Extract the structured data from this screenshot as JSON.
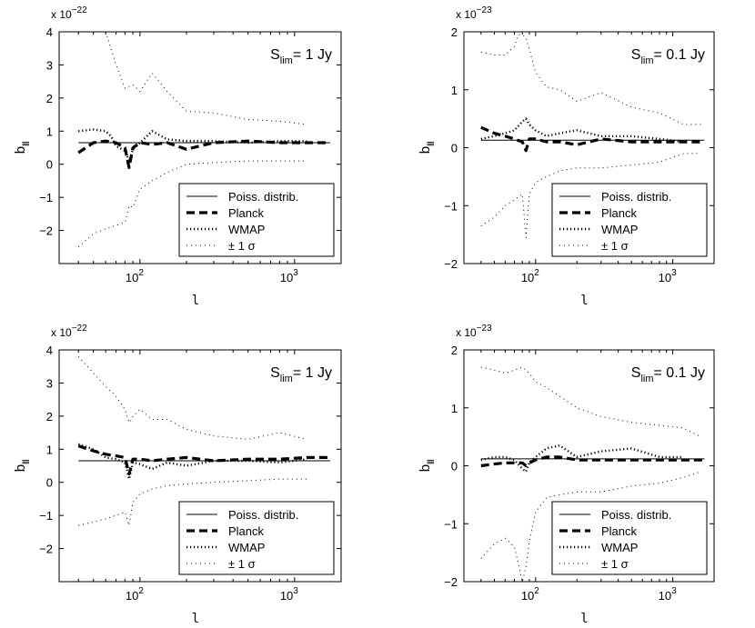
{
  "chart_data": [
    {
      "type": "line",
      "panel": "top-left",
      "annotation": {
        "prefix": "S",
        "sub": "lim",
        "rest": "= 1 Jy"
      },
      "multiplier": {
        "prefix": "x 10",
        "exp": "−22"
      },
      "xlabel": "l",
      "ylabel": {
        "main": "b",
        "sub": "lll"
      },
      "xscale": "log",
      "xlim": [
        30,
        2000
      ],
      "ylim": [
        -3,
        4
      ],
      "yticks": [
        -2,
        -1,
        0,
        1,
        2,
        3,
        4
      ],
      "xticks": [
        {
          "base": "10",
          "exp": "2",
          "value": 100
        },
        {
          "base": "10",
          "exp": "3",
          "value": 1000
        }
      ],
      "legend": {
        "position": "bottom-right",
        "entries": [
          "Poiss. distrib.",
          "Planck",
          "WMAP",
          "± 1 σ"
        ]
      },
      "series": [
        {
          "name": "Poiss. distrib.",
          "style": "solid",
          "x": [
            40,
            1700
          ],
          "y": [
            0.65,
            0.65
          ]
        },
        {
          "name": "Planck",
          "style": "dashed",
          "x": [
            40,
            50,
            60,
            70,
            80,
            85,
            90,
            100,
            120,
            150,
            200,
            300,
            500,
            800,
            1200,
            1700
          ],
          "y": [
            0.35,
            0.65,
            0.7,
            0.65,
            0.5,
            -0.1,
            0.5,
            0.65,
            0.6,
            0.65,
            0.45,
            0.65,
            0.7,
            0.65,
            0.65,
            0.65
          ]
        },
        {
          "name": "WMAP",
          "style": "dotted",
          "x": [
            40,
            50,
            60,
            65,
            70,
            80,
            85,
            90,
            100,
            120,
            150,
            200,
            300,
            500,
            800,
            1200
          ],
          "y": [
            1.0,
            1.05,
            1.0,
            0.85,
            0.55,
            0.4,
            0.1,
            0.45,
            0.65,
            1.0,
            0.75,
            0.7,
            0.7,
            0.65,
            0.7,
            0.7
          ]
        },
        {
          "name": "± 1 σ",
          "style": "sparse-dot",
          "x": [
            60,
            70,
            80,
            90,
            100,
            120,
            150,
            200,
            300,
            500,
            800,
            1200
          ],
          "y": [
            4.0,
            3.0,
            2.3,
            2.4,
            2.2,
            2.75,
            2.2,
            1.6,
            1.55,
            1.35,
            1.3,
            1.2
          ]
        },
        {
          "name": "± 1 σ",
          "style": "sparse-dot",
          "x": [
            40,
            50,
            60,
            70,
            80,
            85,
            90,
            100,
            120,
            150,
            200,
            300,
            500,
            800,
            1200
          ],
          "y": [
            -2.5,
            -2.1,
            -1.95,
            -1.85,
            -1.75,
            -1.25,
            -1.3,
            -0.75,
            -0.5,
            -0.25,
            0.0,
            0.05,
            0.1,
            0.1,
            0.1
          ]
        }
      ]
    },
    {
      "type": "line",
      "panel": "top-right",
      "annotation": {
        "prefix": "S",
        "sub": "lim",
        "rest": "= 0.1 Jy"
      },
      "multiplier": {
        "prefix": "x 10",
        "exp": "−23"
      },
      "xlabel": "l",
      "ylabel": {
        "main": "b",
        "sub": "lll"
      },
      "xscale": "log",
      "xlim": [
        30,
        2000
      ],
      "ylim": [
        -2,
        2
      ],
      "yticks": [
        -2,
        -1,
        0,
        1,
        2
      ],
      "xticks": [
        {
          "base": "10",
          "exp": "2",
          "value": 100
        },
        {
          "base": "10",
          "exp": "3",
          "value": 1000
        }
      ],
      "legend": {
        "position": "bottom-right",
        "entries": [
          "Poiss. distrib.",
          "Planck",
          "WMAP",
          "± 1 σ"
        ]
      },
      "series": [
        {
          "name": "Poiss. distrib.",
          "style": "solid",
          "x": [
            40,
            1700
          ],
          "y": [
            0.13,
            0.13
          ]
        },
        {
          "name": "Planck",
          "style": "dashed",
          "x": [
            40,
            50,
            60,
            70,
            80,
            85,
            90,
            100,
            120,
            150,
            200,
            300,
            500,
            800,
            1200,
            1700
          ],
          "y": [
            0.35,
            0.25,
            0.2,
            0.15,
            0.1,
            -0.05,
            0.15,
            0.15,
            0.1,
            0.1,
            0.05,
            0.15,
            0.1,
            0.1,
            0.1,
            0.1
          ]
        },
        {
          "name": "WMAP",
          "style": "dotted",
          "x": [
            40,
            50,
            60,
            70,
            80,
            85,
            90,
            100,
            120,
            150,
            200,
            300,
            500,
            800,
            1200
          ],
          "y": [
            0.15,
            0.2,
            0.25,
            0.3,
            0.45,
            0.5,
            0.4,
            0.3,
            0.2,
            0.25,
            0.3,
            0.2,
            0.2,
            0.15,
            0.1
          ]
        },
        {
          "name": "± 1 σ",
          "style": "sparse-dot",
          "x": [
            40,
            50,
            60,
            70,
            75,
            80,
            85,
            90,
            100,
            120,
            150,
            200,
            300,
            500,
            800,
            1200,
            1600
          ],
          "y": [
            1.65,
            1.6,
            1.6,
            1.75,
            1.95,
            1.95,
            1.9,
            1.7,
            1.3,
            1.05,
            1.0,
            0.8,
            0.95,
            0.7,
            0.6,
            0.4,
            0.4
          ]
        },
        {
          "name": "± 1 σ",
          "style": "sparse-dot",
          "x": [
            40,
            50,
            60,
            70,
            80,
            85,
            90,
            100,
            120,
            150,
            200,
            300,
            500,
            800,
            1200,
            1600
          ],
          "y": [
            -1.35,
            -1.2,
            -1.0,
            -0.9,
            -0.8,
            -1.55,
            -0.8,
            -0.6,
            -0.5,
            -0.4,
            -0.35,
            -0.35,
            -0.3,
            -0.25,
            -0.1,
            -0.1
          ]
        }
      ]
    },
    {
      "type": "line",
      "panel": "bottom-left",
      "annotation": {
        "prefix": "S",
        "sub": "lim",
        "rest": "= 1 Jy"
      },
      "multiplier": {
        "prefix": "x 10",
        "exp": "−22"
      },
      "xlabel": "l",
      "ylabel": {
        "main": "b",
        "sub": "lll"
      },
      "xscale": "log",
      "xlim": [
        30,
        2000
      ],
      "ylim": [
        -3,
        4
      ],
      "yticks": [
        -2,
        -1,
        0,
        1,
        2,
        3,
        4
      ],
      "xticks": [
        {
          "base": "10",
          "exp": "2",
          "value": 100
        },
        {
          "base": "10",
          "exp": "3",
          "value": 1000
        }
      ],
      "legend": {
        "position": "bottom-right",
        "entries": [
          "Poiss. distrib.",
          "Planck",
          "WMAP",
          "± 1 σ"
        ]
      },
      "series": [
        {
          "name": "Poiss. distrib.",
          "style": "solid",
          "x": [
            40,
            1700
          ],
          "y": [
            0.65,
            0.65
          ]
        },
        {
          "name": "Planck",
          "style": "dashed",
          "x": [
            40,
            50,
            60,
            70,
            80,
            85,
            90,
            100,
            120,
            150,
            200,
            300,
            500,
            800,
            1200,
            1700
          ],
          "y": [
            1.1,
            0.95,
            0.85,
            0.8,
            0.75,
            0.25,
            0.7,
            0.7,
            0.65,
            0.7,
            0.75,
            0.65,
            0.7,
            0.7,
            0.75,
            0.75
          ]
        },
        {
          "name": "WMAP",
          "style": "dotted",
          "x": [
            40,
            50,
            60,
            70,
            80,
            85,
            90,
            100,
            120,
            150,
            200,
            300,
            500,
            800,
            1200
          ],
          "y": [
            1.15,
            1.0,
            0.75,
            0.7,
            0.6,
            0.1,
            0.6,
            0.55,
            0.4,
            0.6,
            0.5,
            0.65,
            0.65,
            0.6,
            0.7
          ]
        },
        {
          "name": "± 1 σ",
          "style": "sparse-dot",
          "x": [
            40,
            50,
            60,
            70,
            80,
            85,
            90,
            100,
            120,
            150,
            200,
            300,
            500,
            800,
            1200
          ],
          "y": [
            3.8,
            3.3,
            2.9,
            2.6,
            2.2,
            1.8,
            2.0,
            2.2,
            1.9,
            1.9,
            1.6,
            1.4,
            1.3,
            1.5,
            1.3
          ]
        },
        {
          "name": "± 1 σ",
          "style": "sparse-dot",
          "x": [
            40,
            50,
            60,
            70,
            80,
            85,
            90,
            100,
            120,
            150,
            200,
            300,
            500,
            800,
            1200
          ],
          "y": [
            -1.3,
            -1.2,
            -1.1,
            -1.0,
            -0.9,
            -1.3,
            -0.6,
            -0.35,
            -0.2,
            -0.1,
            -0.05,
            0.0,
            0.05,
            0.1,
            0.1
          ]
        }
      ]
    },
    {
      "type": "line",
      "panel": "bottom-right",
      "annotation": {
        "prefix": "S",
        "sub": "lim",
        "rest": "= 0.1 Jy"
      },
      "multiplier": {
        "prefix": "x 10",
        "exp": "−23"
      },
      "xlabel": "l",
      "ylabel": {
        "main": "b",
        "sub": "lll"
      },
      "xscale": "log",
      "xlim": [
        30,
        2000
      ],
      "ylim": [
        -2,
        2
      ],
      "yticks": [
        -2,
        -1,
        0,
        1,
        2
      ],
      "xticks": [
        {
          "base": "10",
          "exp": "2",
          "value": 100
        },
        {
          "base": "10",
          "exp": "3",
          "value": 1000
        }
      ],
      "legend": {
        "position": "bottom-right",
        "entries": [
          "Poiss. distrib.",
          "Planck",
          "WMAP",
          "± 1 σ"
        ]
      },
      "series": [
        {
          "name": "Poiss. distrib.",
          "style": "solid",
          "x": [
            40,
            1700
          ],
          "y": [
            0.12,
            0.12
          ]
        },
        {
          "name": "Planck",
          "style": "dashed",
          "x": [
            40,
            50,
            60,
            70,
            80,
            85,
            90,
            100,
            120,
            150,
            200,
            300,
            500,
            800,
            1200,
            1700
          ],
          "y": [
            0.0,
            0.03,
            0.05,
            0.05,
            0.05,
            0.0,
            0.05,
            0.1,
            0.15,
            0.15,
            0.1,
            0.1,
            0.1,
            0.1,
            0.1,
            0.1
          ]
        },
        {
          "name": "WMAP",
          "style": "dotted",
          "x": [
            40,
            50,
            60,
            70,
            80,
            85,
            90,
            100,
            120,
            150,
            200,
            300,
            500,
            800,
            1200
          ],
          "y": [
            0.1,
            0.15,
            0.15,
            0.1,
            -0.05,
            -0.1,
            0.05,
            0.15,
            0.3,
            0.35,
            0.15,
            0.25,
            0.3,
            0.15,
            0.15
          ]
        },
        {
          "name": "± 1 σ",
          "style": "sparse-dot",
          "x": [
            40,
            50,
            60,
            70,
            80,
            90,
            100,
            120,
            150,
            200,
            300,
            500,
            800,
            1200,
            1600
          ],
          "y": [
            1.7,
            1.65,
            1.6,
            1.65,
            1.7,
            1.6,
            1.45,
            1.35,
            1.2,
            1.0,
            0.85,
            0.75,
            0.7,
            0.65,
            0.5
          ]
        },
        {
          "name": "± 1 σ",
          "style": "sparse-dot",
          "x": [
            40,
            50,
            60,
            70,
            75,
            80,
            85,
            90,
            100,
            120,
            150,
            200,
            300,
            500,
            800,
            1200,
            1600
          ],
          "y": [
            -1.6,
            -1.35,
            -1.25,
            -1.4,
            -1.7,
            -2.0,
            -1.75,
            -1.3,
            -0.8,
            -0.55,
            -0.5,
            -0.45,
            -0.45,
            -0.35,
            -0.3,
            -0.2,
            -0.1
          ]
        }
      ]
    }
  ]
}
